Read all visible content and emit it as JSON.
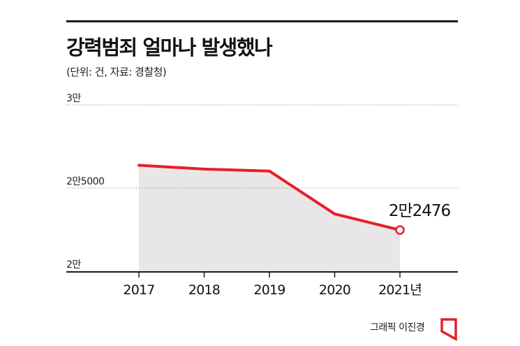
{
  "header": {
    "title": "강력범죄 얼마나 발생했나",
    "subtitle": "(단위: 건, 자료: 경찰청)"
  },
  "footer": {
    "credit": "그래픽 이진경"
  },
  "colors": {
    "line": "#e5202b",
    "area": "#e9e6e7",
    "grid": "#999999",
    "axis": "#1a1a1a"
  },
  "chart_data": {
    "type": "area",
    "categories": [
      "2017",
      "2018",
      "2019",
      "2020",
      "2021년"
    ],
    "series": [
      {
        "values": [
          26370,
          26140,
          26020,
          23440,
          22476
        ]
      }
    ],
    "yticks": [
      {
        "value": 30000,
        "label": "3만"
      },
      {
        "value": 25000,
        "label": "2만5000"
      },
      {
        "value": 20000,
        "label": "2만"
      }
    ],
    "ylim": [
      20000,
      30000
    ],
    "annotation": {
      "index": 4,
      "label": "2만2476"
    },
    "grid": true
  }
}
